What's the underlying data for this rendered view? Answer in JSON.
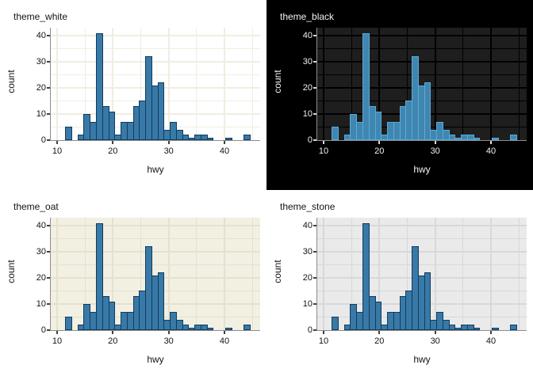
{
  "figure": {
    "description": "2x2 grid of identical ggplot-style histograms of hwy, each drawn with a different theme",
    "layout": [
      "theme_white",
      "theme_black",
      "theme_oat",
      "theme_stone"
    ]
  },
  "chart_data": [
    {
      "type": "bar",
      "title": "theme_white",
      "xlabel": "hwy",
      "ylabel": "count",
      "x_ticks": [
        10,
        20,
        30,
        40
      ],
      "y_ticks": [
        0,
        10,
        20,
        30,
        40
      ],
      "x_minor": [
        15,
        25,
        35,
        45
      ],
      "y_minor": [
        5,
        15,
        25,
        35
      ],
      "xlim": [
        8.9,
        46.5
      ],
      "ylim": [
        0,
        43
      ],
      "grid": "major+minor",
      "legend": "none",
      "bin_start": 11.448,
      "bin_width": 1.1034,
      "counts": [
        5,
        0,
        2,
        10,
        7,
        41,
        13,
        11,
        2,
        7,
        7,
        13,
        15,
        32,
        21,
        22,
        4,
        7,
        4,
        2,
        1,
        2,
        2,
        1,
        0,
        0,
        1,
        0,
        0,
        2
      ],
      "theme": {
        "outer_bg": "#ffffff",
        "panel_bg": "#ffffff",
        "grid_color": "#f0ede2",
        "axis_line": "#8c8c8c",
        "tick_color": "#404040",
        "text_color": "#141414",
        "bar_fill": "#3879a7",
        "bar_stroke": "#123c5e"
      }
    },
    {
      "type": "bar",
      "title": "theme_black",
      "xlabel": "hwy",
      "ylabel": "count",
      "x_ticks": [
        10,
        20,
        30,
        40
      ],
      "y_ticks": [
        0,
        10,
        20,
        30,
        40
      ],
      "x_minor": [
        15,
        25,
        35,
        45
      ],
      "y_minor": [
        5,
        15,
        25,
        35
      ],
      "xlim": [
        8.9,
        46.5
      ],
      "ylim": [
        0,
        43
      ],
      "grid": "major+minor",
      "legend": "none",
      "bin_start": 11.448,
      "bin_width": 1.1034,
      "counts": [
        5,
        0,
        2,
        10,
        7,
        41,
        13,
        11,
        2,
        7,
        7,
        13,
        15,
        32,
        21,
        22,
        4,
        7,
        4,
        2,
        1,
        2,
        2,
        1,
        0,
        0,
        1,
        0,
        0,
        2
      ],
      "theme": {
        "outer_bg": "#000000",
        "panel_bg": "#1e1e1e",
        "grid_color": "#000000",
        "axis_line": "#8c8c8c",
        "tick_color": "#d9d9d9",
        "text_color": "#f2f2f2",
        "bar_fill": "#3f86b1",
        "bar_stroke": "#5aabd6"
      }
    },
    {
      "type": "bar",
      "title": "theme_oat",
      "xlabel": "hwy",
      "ylabel": "count",
      "x_ticks": [
        10,
        20,
        30,
        40
      ],
      "y_ticks": [
        0,
        10,
        20,
        30,
        40
      ],
      "x_minor": [
        15,
        25,
        35,
        45
      ],
      "y_minor": [
        5,
        15,
        25,
        35
      ],
      "xlim": [
        8.9,
        46.5
      ],
      "ylim": [
        0,
        43
      ],
      "grid": "major+minor",
      "legend": "none",
      "bin_start": 11.448,
      "bin_width": 1.1034,
      "counts": [
        5,
        0,
        2,
        10,
        7,
        41,
        13,
        11,
        2,
        7,
        7,
        13,
        15,
        32,
        21,
        22,
        4,
        7,
        4,
        2,
        1,
        2,
        2,
        1,
        0,
        0,
        1,
        0,
        0,
        2
      ],
      "theme": {
        "outer_bg": "#ffffff",
        "panel_bg": "#f1f0e3",
        "grid_color": "#e5e1cd",
        "axis_line": "#8c8c8c",
        "tick_color": "#404040",
        "text_color": "#141414",
        "bar_fill": "#3879a7",
        "bar_stroke": "#123c5e"
      }
    },
    {
      "type": "bar",
      "title": "theme_stone",
      "xlabel": "hwy",
      "ylabel": "count",
      "x_ticks": [
        10,
        20,
        30,
        40
      ],
      "y_ticks": [
        0,
        10,
        20,
        30,
        40
      ],
      "x_minor": [
        15,
        25,
        35,
        45
      ],
      "y_minor": [
        5,
        15,
        25,
        35
      ],
      "xlim": [
        8.9,
        46.5
      ],
      "ylim": [
        0,
        43
      ],
      "grid": "major+minor",
      "legend": "none",
      "bin_start": 11.448,
      "bin_width": 1.1034,
      "counts": [
        5,
        0,
        2,
        10,
        7,
        41,
        13,
        11,
        2,
        7,
        7,
        13,
        15,
        32,
        21,
        22,
        4,
        7,
        4,
        2,
        1,
        2,
        2,
        1,
        0,
        0,
        1,
        0,
        0,
        2
      ],
      "theme": {
        "outer_bg": "#ffffff",
        "panel_bg": "#eaeaea",
        "grid_color": "#d8d8d8",
        "axis_line": "#8c8c8c",
        "tick_color": "#404040",
        "text_color": "#141414",
        "bar_fill": "#3879a7",
        "bar_stroke": "#123c5e"
      }
    }
  ]
}
